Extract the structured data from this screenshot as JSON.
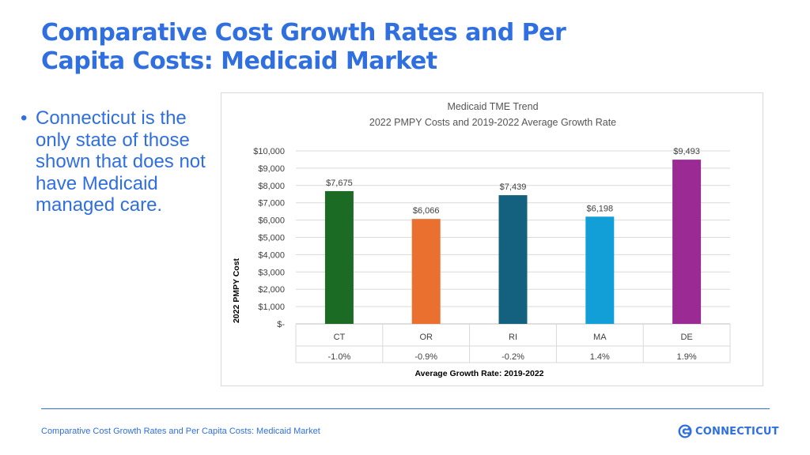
{
  "slide": {
    "title": "Comparative Cost Growth Rates and Per Capita Costs: Medicaid Market",
    "bullet": "Connecticut is the only state of those shown that does not have Medicaid managed care.",
    "footer": "Comparative Cost Growth Rates and Per Capita Costs: Medicaid Market",
    "logo_text": "CONNECTICUT",
    "accent_color": "#2f6fe0"
  },
  "chart_data": {
    "type": "bar",
    "title": "Medicaid TME Trend",
    "subtitle": "2022 PMPY Costs and 2019-2022 Average Growth Rate",
    "categories": [
      "CT",
      "OR",
      "RI",
      "MA",
      "DE"
    ],
    "values": [
      7675,
      6066,
      7439,
      6198,
      9493
    ],
    "value_labels": [
      "$7,675",
      "$6,066",
      "$7,439",
      "$6,198",
      "$9,493"
    ],
    "growth_rates": [
      "-1.0%",
      "-0.9%",
      "-0.2%",
      "1.4%",
      "1.9%"
    ],
    "colors": [
      "#1b6b25",
      "#ea7030",
      "#14607f",
      "#129fd7",
      "#9b2a94"
    ],
    "ylabel": "2022 PMPY Cost",
    "xlabel": "Average Growth Rate: 2019-2022",
    "ylim": [
      0,
      10000
    ],
    "yticks": [
      0,
      1000,
      2000,
      3000,
      4000,
      5000,
      6000,
      7000,
      8000,
      9000,
      10000
    ],
    "ytick_labels": [
      "$-",
      "$1,000",
      "$2,000",
      "$3,000",
      "$4,000",
      "$5,000",
      "$6,000",
      "$7,000",
      "$8,000",
      "$9,000",
      "$10,000"
    ],
    "grid": true
  }
}
